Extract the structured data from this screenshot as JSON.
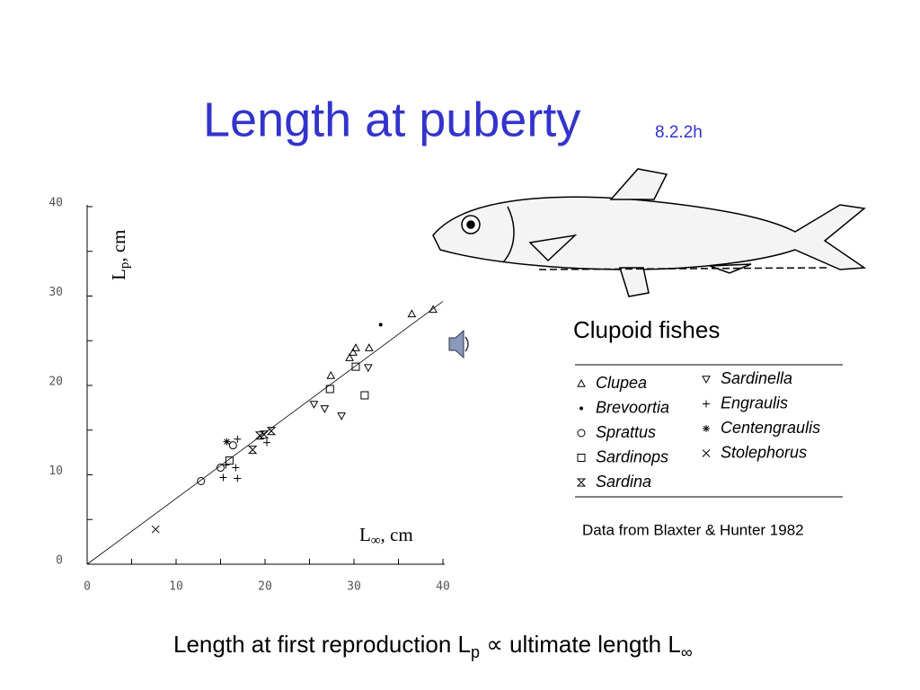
{
  "slide": {
    "title": "Length at puberty",
    "section": "8.2.2h",
    "legend_title": "Clupoid fishes",
    "source": "Data from Blaxter & Hunter 1982",
    "caption": {
      "text1": "Length at first reproduction L",
      "sub1": "p",
      "text2": " ∝ ultimate length L",
      "sub2": "∞"
    }
  },
  "chart_data": {
    "type": "scatter",
    "x_label": {
      "main": "L",
      "sub": "∞",
      "rest": ", cm"
    },
    "y_label": {
      "main": "L",
      "sub": "p",
      "rest": ", cm"
    },
    "xlim": [
      0,
      40
    ],
    "ylim": [
      0,
      40
    ],
    "xticks": [
      0,
      10,
      20,
      30,
      40
    ],
    "yticks": [
      0,
      10,
      20,
      30,
      40
    ],
    "xminorticks": [
      5,
      15,
      25,
      35
    ],
    "yminorticks": [
      5,
      15,
      25,
      35
    ],
    "fit_line": {
      "x": [
        0,
        40
      ],
      "y": [
        0,
        29.4
      ]
    },
    "series": [
      {
        "name": "Clupea",
        "marker": "triangle",
        "color": "#000000",
        "column": 0,
        "x": [
          36.5,
          38.9,
          31.7,
          30.2,
          29.9,
          29.5,
          27.4
        ],
        "values": [
          28,
          28.5,
          24.2,
          24.2,
          23.7,
          23.1,
          21.1
        ]
      },
      {
        "name": "Brevoortia",
        "marker": "dot",
        "color": "#000000",
        "column": 0,
        "x": [
          33.0
        ],
        "values": [
          26.8
        ]
      },
      {
        "name": "Sprattus",
        "marker": "circle",
        "color": "#000000",
        "column": 0,
        "x": [
          12.8,
          15.0,
          16.4
        ],
        "values": [
          9.3,
          10.8,
          13.3
        ]
      },
      {
        "name": "Sardinops",
        "marker": "square",
        "color": "#000000",
        "column": 0,
        "x": [
          30.2,
          31.2,
          27.3,
          16.0
        ],
        "values": [
          22.1,
          18.9,
          19.6,
          11.6
        ]
      },
      {
        "name": "Sardina",
        "marker": "hourglass",
        "color": "#000000",
        "column": 0,
        "x": [
          19.4,
          19.9,
          20.7,
          18.6
        ],
        "values": [
          14.4,
          14.5,
          14.9,
          12.8
        ]
      },
      {
        "name": "Sardinella",
        "marker": "triangle-down",
        "color": "#000000",
        "column": 1,
        "x": [
          28.6,
          26.7,
          25.5,
          31.6
        ],
        "values": [
          16.6,
          17.4,
          17.9,
          22.0
        ]
      },
      {
        "name": "Engraulis",
        "marker": "plus",
        "color": "#000000",
        "column": 1,
        "x": [
          16.9,
          16.7,
          16.9,
          15.3,
          20.2,
          15.6
        ],
        "values": [
          14.0,
          10.8,
          9.6,
          9.7,
          13.6,
          11.1
        ]
      },
      {
        "name": "Centengraulis",
        "marker": "star",
        "color": "#000000",
        "column": 1,
        "x": [
          15.7
        ],
        "values": [
          13.7
        ]
      },
      {
        "name": "Stolephorus",
        "marker": "cross",
        "color": "#000000",
        "column": 1,
        "x": [
          7.7
        ],
        "values": [
          3.9
        ]
      }
    ]
  }
}
